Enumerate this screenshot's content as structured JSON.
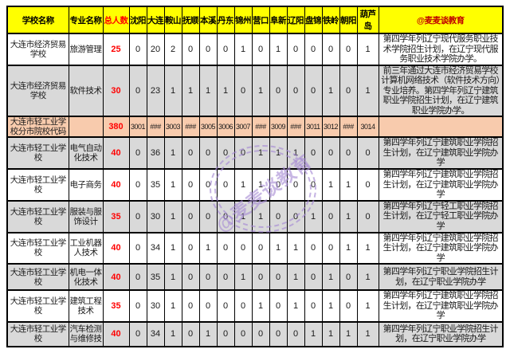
{
  "watermark": {
    "text": "@麦麦谈教育",
    "color": "#A78BD4"
  },
  "table": {
    "header_bg": "#FFFF00",
    "colors": {
      "total_text": "#FF0000",
      "header_total_text": "#FF0000",
      "header_brand_text": "#C00000",
      "row_gray": "#D9D9D9",
      "row_peach": "#F8CBAD",
      "border": "#000000"
    },
    "headers": [
      "学校名称",
      "专业名称",
      "总人数",
      "沈阳",
      "大连",
      "鞍山",
      "抚顺",
      "本溪",
      "丹东",
      "锦州",
      "营口",
      "阜新",
      "辽阳",
      "盘锦",
      "铁岭",
      "朝阳",
      "葫芦岛",
      "@麦麦谈教育"
    ],
    "rows": [
      {
        "school": "大连市经济贸易学校",
        "major": "旅游管理",
        "total": "25",
        "values": [
          "0",
          "20",
          "2",
          "0",
          "0",
          "0",
          "1",
          "0",
          "1",
          "0",
          "0",
          "0",
          "0",
          "1"
        ],
        "remark": "第四学年列辽宁现代服务职业技术学院招生计划，在辽宁现代服务职业技术学院办学。",
        "bg": "white"
      },
      {
        "school": "大连市经济贸易学校",
        "major": "软件技术",
        "total": "30",
        "values": [
          "0",
          "23",
          "1",
          "1",
          "1",
          "1",
          "0",
          "1",
          "0",
          "0",
          "0",
          "1",
          "0",
          "1"
        ],
        "remark": "前三年通过大连市经济贸易学校计算机网络技术（软件技术方向）专业培养。第四学年列辽宁建筑职业学院招生计划，在辽宁建筑职业学院办学。",
        "bg": "gray"
      },
      {
        "school": "大连市轻工业学校分市院校代码",
        "major": "",
        "total": "380",
        "values": [
          "3001",
          "###",
          "3003",
          "###",
          "3005",
          "3006",
          "3007",
          "###",
          "3009",
          "###",
          "3011",
          "3012",
          "###",
          "3014"
        ],
        "remark": "",
        "bg": "peach"
      },
      {
        "school": "大连市轻工业学校",
        "major": "电气自动化技术",
        "total": "40",
        "values": [
          "0",
          "36",
          "1",
          "0",
          "0",
          "0",
          "0",
          "1",
          "1",
          "1",
          "0",
          "0",
          "0",
          "0"
        ],
        "remark": "第四学年列辽宁建筑职业学院招生计划，在辽宁建筑职业学院办学",
        "bg": "gray"
      },
      {
        "school": "大连市轻工业学校",
        "major": "电子商务",
        "total": "40",
        "values": [
          "0",
          "35",
          "1",
          "0",
          "0",
          "0",
          "1",
          "1",
          "0",
          "0",
          "0",
          "1",
          "1",
          "0"
        ],
        "remark": "第四学年列辽宁建筑职业学院招生计划，在辽宁建筑职业学院办学",
        "bg": "white"
      },
      {
        "school": "大连市轻工业学校",
        "major": "服装与服饰设计",
        "total": "35",
        "values": [
          "0",
          "30",
          "1",
          "0",
          "0",
          "0",
          "1",
          "1",
          "0",
          "0",
          "1",
          "0",
          "1",
          "0"
        ],
        "remark": "第四学年列辽宁轻工职业学院招生计划，在辽宁轻工职业学院办学",
        "bg": "gray"
      },
      {
        "school": "大连市轻工业学校",
        "major": "工业机器人技术",
        "total": "40",
        "values": [
          "0",
          "34",
          "1",
          "0",
          "1",
          "0",
          "0",
          "0",
          "1",
          "1",
          "0",
          "0",
          "1",
          "1"
        ],
        "remark": "第四学年列辽宁建筑职业学院招生计划，在辽宁建筑职业学院办学",
        "bg": "white"
      },
      {
        "school": "大连市轻工业学校",
        "major": "机电一体化技术",
        "total": "40",
        "values": [
          "0",
          "35",
          "1",
          "0",
          "0",
          "0",
          "1",
          "0",
          "0",
          "1",
          "0",
          "1",
          "0",
          "1"
        ],
        "remark": "第四学年列辽宁职业学院招生计划，在辽宁职业学院办学",
        "bg": "gray"
      },
      {
        "school": "大连市轻工业学校",
        "major": "建筑工程技术",
        "total": "35",
        "values": [
          "0",
          "30",
          "1",
          "0",
          "0",
          "0",
          "0",
          "1",
          "0",
          "1",
          "0",
          "1",
          "0",
          "1"
        ],
        "remark": "第四学年列辽宁建筑职业学院招生计划，在辽宁建筑职业学院办学",
        "bg": "white"
      },
      {
        "school": "大连市轻工业学校",
        "major": "汽车检测与维修技",
        "total": "40",
        "values": [
          "0",
          "34",
          "1",
          "0",
          "1",
          "0",
          "0",
          "0",
          "0",
          "0",
          "1",
          "1",
          "1",
          "1"
        ],
        "remark": "第四学年列辽宁职业学院招生计划，在辽宁职业学院办学",
        "bg": "gray"
      }
    ]
  }
}
